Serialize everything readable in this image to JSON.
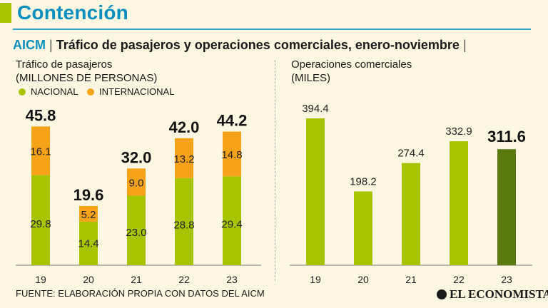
{
  "header": {
    "title": "Contención",
    "org": "AICM",
    "subtitle": "Tráfico de pasajeros y operaciones comerciales, enero-noviembre"
  },
  "left_chart_labels": {
    "title_line1": "Tráfico de pasajeros",
    "title_line2": "(MILLONES DE PERSONAS)"
  },
  "right_chart_labels": {
    "title_line1": "Operaciones comerciales",
    "title_line2": "(MILES)"
  },
  "legend": {
    "nacional": "NACIONAL",
    "internacional": "INTERNACIONAL"
  },
  "footer": {
    "source": "FUENTE: ELABORACIÓN PROPIA CON DATOS DEL AICM",
    "brand": "EL ECONOMISTA"
  },
  "colors": {
    "nacional": "#a8c400",
    "internacional": "#f7a31a",
    "highlight": "#5a7a10",
    "accent": "#0a8fbe"
  },
  "chart_data": [
    {
      "type": "bar",
      "stacked": true,
      "title": "Tráfico de pasajeros",
      "ylabel": "MILLONES DE PERSONAS",
      "categories": [
        "19",
        "20",
        "21",
        "22",
        "23"
      ],
      "series": [
        {
          "name": "NACIONAL",
          "values": [
            29.8,
            14.4,
            23.0,
            28.8,
            29.4
          ],
          "labels": [
            "29.8",
            "14.4",
            "23.0",
            "28.8",
            "29.4"
          ]
        },
        {
          "name": "INTERNACIONAL",
          "values": [
            16.1,
            5.2,
            9.0,
            13.2,
            14.8
          ],
          "labels": [
            "16.1",
            "5.2",
            "9.0",
            "13.2",
            "14.8"
          ]
        }
      ],
      "totals": [
        "45.8",
        "19.6",
        "32.0",
        "42.0",
        "44.2"
      ],
      "ylim": [
        0,
        50
      ]
    },
    {
      "type": "bar",
      "title": "Operaciones comerciales",
      "ylabel": "MILES",
      "categories": [
        "19",
        "20",
        "21",
        "22",
        "23"
      ],
      "values": [
        394.4,
        198.2,
        274.4,
        332.9,
        311.6
      ],
      "labels": [
        "394.4",
        "198.2",
        "274.4",
        "332.9",
        "311.6"
      ],
      "highlight_index": 4,
      "ylim": [
        0,
        430
      ]
    }
  ]
}
